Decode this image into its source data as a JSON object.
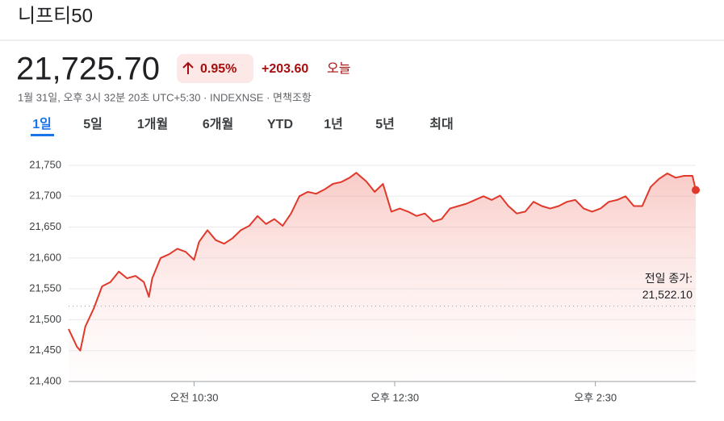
{
  "header": {
    "title": "니프티50"
  },
  "quote": {
    "price": "21,725.70",
    "change_percent": "0.95%",
    "change": "+203.60",
    "period": "오늘",
    "info": "1월 31일, 오후 3시 32분 20초 UTC+5:30 · INDEXNSE · 면책조항"
  },
  "tabs": [
    "1일",
    "5일",
    "1개월",
    "6개월",
    "YTD",
    "1년",
    "5년",
    "최대"
  ],
  "chart_data": {
    "type": "line",
    "color": "#e0392b",
    "x": [
      "09:15",
      "09:20",
      "09:22",
      "09:25",
      "09:30",
      "09:35",
      "09:40",
      "09:45",
      "09:50",
      "09:55",
      "10:00",
      "10:03",
      "10:05",
      "10:10",
      "10:15",
      "10:20",
      "10:25",
      "10:30",
      "10:33",
      "10:38",
      "10:43",
      "10:48",
      "10:53",
      "10:58",
      "11:03",
      "11:08",
      "11:13",
      "11:18",
      "11:23",
      "11:28",
      "11:33",
      "11:38",
      "11:43",
      "11:48",
      "11:53",
      "11:58",
      "12:03",
      "12:07",
      "12:13",
      "12:18",
      "12:23",
      "12:28",
      "12:33",
      "12:38",
      "12:43",
      "12:48",
      "12:53",
      "12:58",
      "13:03",
      "13:08",
      "13:13",
      "13:18",
      "13:23",
      "13:28",
      "13:33",
      "13:38",
      "13:43",
      "13:48",
      "13:53",
      "13:58",
      "14:03",
      "14:08",
      "14:13",
      "14:18",
      "14:23",
      "14:28",
      "14:33",
      "14:38",
      "14:43",
      "14:48",
      "14:53",
      "14:58",
      "15:03",
      "15:08",
      "15:13",
      "15:18",
      "15:23",
      "15:28",
      "15:30"
    ],
    "series": [
      {
        "name": "니프티50",
        "values": [
          21485,
          21456,
          21450,
          21489,
          21518,
          21554,
          21561,
          21578,
          21567,
          21571,
          21561,
          21537,
          21567,
          21600,
          21606,
          21615,
          21610,
          21597,
          21626,
          21645,
          21629,
          21623,
          21632,
          21645,
          21652,
          21668,
          21655,
          21663,
          21652,
          21672,
          21700,
          21707,
          21704,
          21711,
          21720,
          21723,
          21730,
          21738,
          21724,
          21707,
          21720,
          21675,
          21680,
          21675,
          21668,
          21672,
          21659,
          21663,
          21680,
          21684,
          21688,
          21694,
          21700,
          21694,
          21701,
          21684,
          21672,
          21675,
          21691,
          21684,
          21680,
          21684,
          21691,
          21694,
          21680,
          21675,
          21680,
          21691,
          21694,
          21700,
          21684,
          21684,
          21715,
          21728,
          21737,
          21730,
          21733,
          21733,
          21710
        ]
      }
    ],
    "xlim": [
      "09:15",
      "15:30"
    ],
    "xticks": [
      {
        "value": "10:30",
        "label": "오전 10:30"
      },
      {
        "value": "12:30",
        "label": "오후 12:30"
      },
      {
        "value": "14:30",
        "label": "오후 2:30"
      }
    ],
    "ylim": [
      21400,
      21750
    ],
    "yticks": [
      {
        "value": 21400,
        "label": "21,400"
      },
      {
        "value": 21450,
        "label": "21,450"
      },
      {
        "value": 21500,
        "label": "21,500"
      },
      {
        "value": 21550,
        "label": "21,550"
      },
      {
        "value": 21600,
        "label": "21,600"
      },
      {
        "value": 21650,
        "label": "21,650"
      },
      {
        "value": 21700,
        "label": "21,700"
      },
      {
        "value": 21750,
        "label": "21,750"
      }
    ],
    "grid": true,
    "previous_close": {
      "label": "전일 종가:",
      "value": 21522.1,
      "value_label": "21,522.10"
    }
  }
}
